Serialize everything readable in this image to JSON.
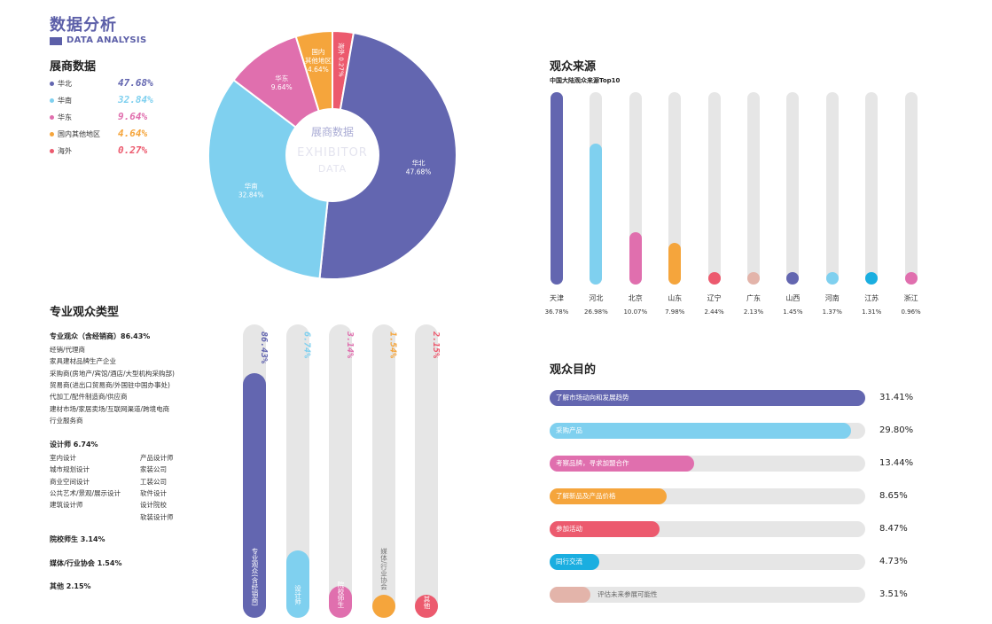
{
  "header": {
    "title": "数据分析",
    "subtitle": "DATA ANALYSIS"
  },
  "exhibitor": {
    "heading": "展商数据",
    "center_cn": "展商数据",
    "center_en_1": "EXHIBITOR",
    "center_en_2": "DATA"
  },
  "origin": {
    "heading": "观众来源",
    "subtitle": "中国大陆观众来源Top10"
  },
  "types": {
    "heading": "专业观众类型",
    "groups": {
      "dealer": {
        "title": "专业观众（含经销商）86.43%",
        "lines": [
          "经销/代理商",
          "家具建材品牌生产企业",
          "采购商(房地产/宾馆/酒店/大型机构采购部)",
          "贸易商(进出口贸易商/外国驻中国办事处)",
          "代加工/配件制造商/供应商",
          "建材市场/家居卖场/互联网渠道/跨境电商",
          "行业服务商"
        ]
      },
      "designer": {
        "title": "设计师 6.74%",
        "col1": [
          "室内设计",
          "城市规划设计",
          "商业空间设计",
          "公共艺术/景观/展示设计",
          "建筑设计师"
        ],
        "col2": [
          "产品设计师",
          "家装公司",
          "工装公司",
          "软件设计",
          "设计院校",
          "软装设计师"
        ]
      },
      "school": {
        "title": "院校师生 3.14%"
      },
      "media": {
        "title": "媒体/行业协会 1.54%"
      },
      "other": {
        "title": "其他 2.15%"
      }
    }
  },
  "purpose": {
    "heading": "观众目的"
  },
  "chart_data": [
    {
      "type": "pie",
      "title": "展商数据",
      "categories": [
        "华北",
        "华南",
        "华东",
        "国内其他地区",
        "海外"
      ],
      "values": [
        47.68,
        32.84,
        9.64,
        4.64,
        0.27
      ],
      "value_labels": [
        "47.68%",
        "32.84%",
        "9.64%",
        "4.64%",
        "0.27%"
      ],
      "slice_labels": [
        [
          "华北",
          "47.68%"
        ],
        [
          "华南",
          "32.84%"
        ],
        [
          "华东",
          "9.64%"
        ],
        [
          "国内",
          "其他地区",
          "4.64%"
        ],
        [
          "海外 0.27%"
        ]
      ],
      "colors": [
        "#6366b0",
        "#7fd0ef",
        "#e06fae",
        "#f5a53c",
        "#ec5a6e"
      ],
      "donut": true
    },
    {
      "type": "bar",
      "orientation": "vertical",
      "title": "中国大陆观众来源Top10",
      "categories": [
        "天津",
        "河北",
        "北京",
        "山东",
        "辽宁",
        "广东",
        "山西",
        "河南",
        "江苏",
        "浙江"
      ],
      "values": [
        36.78,
        26.98,
        10.07,
        7.98,
        2.44,
        2.13,
        1.45,
        1.37,
        1.31,
        0.96
      ],
      "value_labels": [
        "36.78%",
        "26.98%",
        "10.07%",
        "7.98%",
        "2.44%",
        "2.13%",
        "1.45%",
        "1.37%",
        "1.31%",
        "0.96%"
      ],
      "colors": [
        "#6366b0",
        "#7fd0ef",
        "#e06fae",
        "#f5a53c",
        "#ec5a6e",
        "#e3b4aa",
        "#6366b0",
        "#7fd0ef",
        "#1aaee0",
        "#e06fae"
      ]
    },
    {
      "type": "bar",
      "orientation": "vertical",
      "title": "专业观众类型",
      "categories": [
        "专业观众(含经销商)",
        "设计师",
        "院校师生",
        "媒体/行业协会",
        "其他"
      ],
      "values": [
        86.43,
        6.74,
        3.14,
        1.54,
        2.15
      ],
      "value_labels": [
        "86.43%",
        "6.74%",
        "3.14%",
        "1.54%",
        "2.15%"
      ],
      "colors": [
        "#6366b0",
        "#7fd0ef",
        "#e06fae",
        "#f5a53c",
        "#ec5a6e"
      ]
    },
    {
      "type": "bar",
      "orientation": "horizontal",
      "title": "观众目的",
      "categories": [
        "了解市场动向和发展趋势",
        "采购产品",
        "考察品牌，寻求加盟合作",
        "了解新品及产品价格",
        "参加活动",
        "同行交流",
        "评估未来参展可能性"
      ],
      "values": [
        31.41,
        29.8,
        13.44,
        8.65,
        8.47,
        4.73,
        3.51
      ],
      "value_labels": [
        "31.41%",
        "29.80%",
        "13.44%",
        "8.65%",
        "8.47%",
        "4.73%",
        "3.51%"
      ],
      "colors": [
        "#6366b0",
        "#7fd0ef",
        "#e06fae",
        "#f5a53c",
        "#ec5a6e",
        "#1aaee0",
        "#e3b4aa"
      ]
    }
  ]
}
